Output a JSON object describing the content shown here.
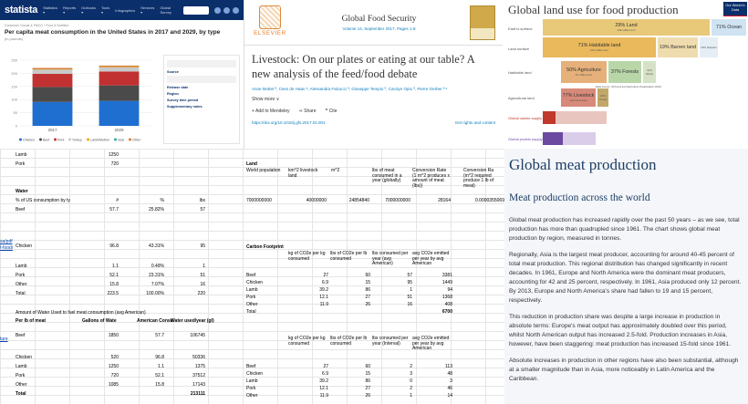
{
  "statista": {
    "logo": "statista",
    "nav": [
      "Statistics ▾",
      "Reports ▾",
      "Outlooks ▾",
      "Tools ▾",
      "Infographics",
      "Services ▾",
      "Global Survey"
    ],
    "breadcrumb": "Consumer Goods & FMCG › Food & Nutrition",
    "title": "Per capita meat consumption in the United States in 2017 and 2029, by type",
    "unit": "(in pounds)",
    "sidebar": {
      "source": "Source",
      "release": "Release date",
      "region": "Region",
      "survey": "Survey time period",
      "supplementary": "Supplementary notes"
    },
    "chart_data": {
      "type": "bar",
      "categories": [
        "2017",
        "2029"
      ],
      "series": [
        {
          "name": "Chicken",
          "values": [
            91,
            95
          ]
        },
        {
          "name": "Beef",
          "values": [
            57,
            59
          ]
        },
        {
          "name": "Pork",
          "values": [
            50,
            53
          ]
        },
        {
          "name": "Turkey",
          "values": [
            16,
            16
          ]
        },
        {
          "name": "Lamb/Mutton",
          "values": [
            1,
            1
          ]
        },
        {
          "name": "Veal",
          "values": [
            0.4,
            0.4
          ]
        },
        {
          "name": "Other",
          "values": [
            5,
            5
          ]
        }
      ],
      "colors": [
        "#1f6fd1",
        "#4a4a4a",
        "#c13131",
        "#c9c9c9",
        "#f0a500",
        "#2aa7a0",
        "#d97b2f"
      ],
      "ylim": [
        0,
        250
      ]
    }
  },
  "gfs": {
    "publisher": "ELSEVIER",
    "journal": "Global Food Security",
    "volume": "Volume 14, September 2017, Pages 1-8",
    "title": "Livestock: On our plates or eating at our table? A new analysis of the feed/food debate",
    "authors": "Anne Mottet ª, Cees de Haan ᵇ, Alessandra Falcucci ª, Giuseppe Tempio ª, Carolyn Opio ª, Pierre Gerber ª ᶜ",
    "show_more": "Show more ∨",
    "actions": [
      "+ Add to Mendeley",
      "Share",
      "Cite"
    ],
    "doi": "https://doi.org/10.1016/j.gfs.2017.01.001",
    "rights": "Get rights and content"
  },
  "landuse": {
    "title": "Global land use for food production",
    "owid": "Our World in Data",
    "rows": [
      "Earth's surface",
      "Land surface",
      "Habitable land",
      "Agricultural land",
      "Global calorie supply",
      "Global protein supply"
    ],
    "land_pct": "29% Land",
    "land_area": "149 million km²",
    "ocean_pct": "71% Ocean",
    "habitable_pct": "71% Habitable land",
    "habitable_area": "104 million km²",
    "barren_pct": "19% Barren land",
    "glacier_pct": "10% Glaciers",
    "agri_pct": "50% Agriculture",
    "agri_area": "51 million km²",
    "forest_pct": "37% Forests",
    "shrub_pct": "11% Shrub",
    "livestock_pct": "77% Livestock",
    "livestock_area": "meat and dairy",
    "crops_pct": "23% Crops",
    "note": "Data source: UN Food and Agriculture Organization (FAO)"
  },
  "sheet": {
    "top_rows": [
      [
        "Lamb",
        "1250"
      ],
      [
        "Pork",
        "720"
      ]
    ],
    "water": {
      "title": "Water",
      "header": [
        "% of US consumption by ty",
        "#",
        "%",
        "lbs"
      ],
      "rows": [
        [
          "Beef",
          "57.7",
          "25.82%",
          "57"
        ],
        [
          "Chicken",
          "96.8",
          "43.31%",
          "95"
        ],
        [
          "Lamb",
          "1.1",
          "0.49%",
          "1"
        ],
        [
          "Pork",
          "52.1",
          "23.31%",
          "51"
        ],
        [
          "Other",
          "15.8",
          "7.07%",
          "16"
        ],
        [
          "Total",
          "223.5",
          "100.00%",
          "220"
        ]
      ],
      "links": [
        "sa/pdf",
        "f-foodi",
        "ture"
      ]
    },
    "water2": {
      "title": "Amount of Water Used to fuel meat consumption (avg American)",
      "header": [
        "Per lb of meat",
        "Gallons of Wate",
        "American Consu",
        "Water used/year (gl)"
      ],
      "rows": [
        [
          "Beef",
          "1850",
          "57.7",
          "106745"
        ],
        [
          "Chicken",
          "520",
          "96.8",
          "50336"
        ],
        [
          "Lamb",
          "1250",
          "1.1",
          "1375"
        ],
        [
          "Pork",
          "720",
          "52.1",
          "37512"
        ],
        [
          "Other",
          "1085",
          "15.8",
          "17143"
        ],
        [
          "Total",
          "",
          "",
          "213111"
        ]
      ]
    },
    "land": {
      "title": "Land",
      "header": [
        "World population",
        "km^2 livestock land",
        "m^2",
        "lbs of meat consumed in a year (globally)",
        "Conversion Rate (1 m^2 produces x amount of meat (lbs))",
        "Conversion Ra (m^2 required produce 1 lb of meat)"
      ],
      "row": [
        "7000000000",
        "40000000",
        "24854840",
        "7000000000",
        "28164",
        "0.0000355069"
      ]
    },
    "carbon": {
      "title": "Carbon Footprint",
      "header": [
        "kg of CO2e per kg consumed",
        "lbs of CO2e per lb consumed",
        "lbs consumed per year (avg American)",
        "avg CO2e emitted per year by avg American"
      ],
      "rows": [
        [
          "Beef",
          "27",
          "60",
          "57",
          "3381"
        ],
        [
          "Chicken",
          "6.9",
          "15",
          "95",
          "1449"
        ],
        [
          "Lamb",
          "39.2",
          "86",
          "1",
          "94"
        ],
        [
          "Pork",
          "12.1",
          "27",
          "51",
          "1368"
        ],
        [
          "Other",
          "11.9",
          "26",
          "16",
          "408"
        ],
        [
          "Total",
          "",
          "",
          "",
          "6700"
        ]
      ]
    },
    "carbon2": {
      "header": [
        "kg of CO2e per kg consumed",
        "lbs of CO2e per lb consumed",
        "lbs consumed per year (Interval)",
        "avg CO2e emitted per year by avg American"
      ],
      "rows": [
        [
          "Beef",
          "27",
          "60",
          "2",
          "113"
        ],
        [
          "Chicken",
          "6.9",
          "15",
          "3",
          "48"
        ],
        [
          "Lamb",
          "39.2",
          "86",
          "0",
          "3"
        ],
        [
          "Pork",
          "12.1",
          "27",
          "2",
          "46"
        ],
        [
          "Other",
          "11.9",
          "26",
          "1",
          "14"
        ]
      ]
    }
  },
  "meat": {
    "title": "Global meat production",
    "subtitle": "Meat production across the world",
    "paragraphs": [
      "Global meat production has increased rapidly over the past 50 years – as we see, total production has more than quadrupled since 1961. The chart shows global meat production by region, measured in tonnes.",
      "Regionally, Asia is the largest meat producer, accounting for around 40-45 percent of total meat production. This regional distribution has changed significantly in recent decades. In 1961, Europe and North America were the dominant meat producers, accounting for 42 and 25 percent, respectively. In 1961, Asia produced only 12 percent. By 2013, Europe and North America's share had fallen to 19 and 15 percent, respectively.",
      "This reduction in production share was despite a large increase in production in absolute terms: Europe's meat output has approximately doubled over this period, whilst North American output has increased 2.5-fold. Production increases in Asia, however, have been staggering: meat production has increased 15-fold since 1961.",
      "Absolute increases in production in other regions have also been substantial, although at a smaller magnitude than in Asia, more noticeably in Latin America and the Caribbean."
    ]
  }
}
